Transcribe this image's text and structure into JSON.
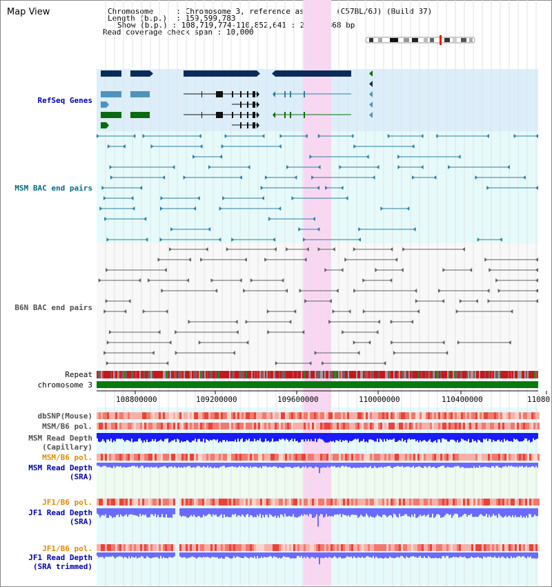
{
  "page": {
    "title": "Map View"
  },
  "info": {
    "chromosome_key": "Chromosome",
    "chromosome_value": "Chromosome 3, reference assembly (C57BL/6J) (Build 37)",
    "length_key": "Length (b.p.)",
    "length_value": "159,599,783",
    "show_key": "Show (b.p.)",
    "show_value": "108,719,774-110,852,641 : 2,132,868 bp",
    "coverage_key": "Read coverage check span",
    "coverage_value": "10,000"
  },
  "tracks": {
    "refseq_label": "RefSeq Genes",
    "msm_bac_label": "MSM BAC end pairs",
    "b6n_bac_label": "B6N BAC end pairs",
    "repeat_label": "Repeat",
    "chromosome_label": "chromosome 3",
    "dbsnp_label": "dbSNP(Mouse)",
    "msm_pol_label": "MSM/B6 pol.",
    "msm_depth_label_1": "MSM Read Depth",
    "msm_depth_label_2": "(Capillary)",
    "msm_pol2_label": "MSM/B6 pol.",
    "msm_sra_label_1": "MSM Read Depth",
    "msm_sra_label_2": "(SRA)",
    "jf1_pol_label": "JF1/B6 pol.",
    "jf1_sra_label_1": "JF1 Read Depth",
    "jf1_sra_label_2": "(SRA)",
    "jf1_pol2_label": "JF1/B6 pol.",
    "jf1_trim_label_1": "JF1 Read Depth",
    "jf1_trim_label_2": "(SRA trimmed)"
  },
  "axis": {
    "ticks": [
      "108800000",
      "109200000",
      "109600000",
      "110000000",
      "110400000",
      "11080"
    ]
  },
  "colors": {
    "refseq_bg": "#dceefa",
    "msm_bg": "#e6fafa",
    "b6n_bg": "#f8f8f8",
    "sra_bg": "#eefbf0",
    "highlight": "#f9d7f3",
    "dark_blue_gene": "#0a2a5a",
    "light_blue_gene": "#4d94bd",
    "green_gene": "#0a6a10",
    "msm_bac": "#2a7fa0",
    "b6n_bac": "#606060",
    "chromosome_bar": "#0a7a10",
    "read_depth_capillary": "#1a1aff",
    "read_depth_sra": "#6a6aff",
    "label_blue": "#0000aa",
    "label_teal": "#006a8a",
    "label_orange": "#e08a00"
  }
}
